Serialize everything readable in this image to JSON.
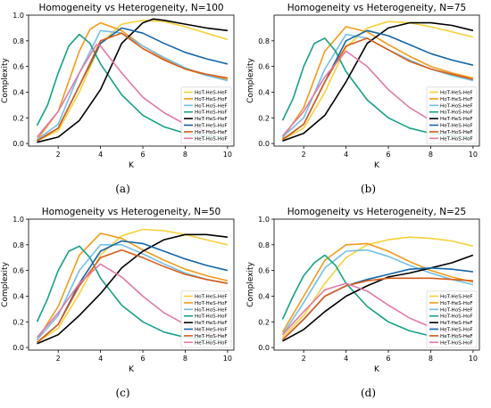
{
  "chart_data": [
    {
      "type": "line",
      "title": "Homogeneity vs Heterogeneity, N=100",
      "xlabel": "K",
      "ylabel": "Complexity",
      "panel_label": "(a)",
      "xlim": [
        0.6,
        10.3
      ],
      "ylim": [
        -0.02,
        1.0
      ],
      "xticks": [
        2,
        4,
        6,
        8,
        10
      ],
      "yticks": [
        0.0,
        0.2,
        0.4,
        0.6,
        0.8,
        1.0
      ],
      "ytick_labels": [
        "0.0",
        "0.2",
        "0.4",
        "0.6",
        "0.8",
        "1.0"
      ],
      "legend_position": "lower-right",
      "series": [
        {
          "name": "HoT-HeS-HeF",
          "color": "#f7d13a",
          "x": [
            1,
            2,
            3,
            4,
            5,
            6,
            7,
            8,
            9,
            10
          ],
          "values": [
            0.02,
            0.1,
            0.4,
            0.78,
            0.93,
            0.96,
            0.95,
            0.91,
            0.86,
            0.81
          ]
        },
        {
          "name": "HoT-HeS-HoF",
          "color": "#f29a1c",
          "x": [
            1,
            2,
            3,
            3.5,
            4,
            5,
            6,
            7,
            8,
            9,
            10
          ],
          "values": [
            0.03,
            0.25,
            0.72,
            0.89,
            0.94,
            0.88,
            0.76,
            0.66,
            0.58,
            0.53,
            0.5
          ]
        },
        {
          "name": "HoT-HoS-HeF",
          "color": "#73bfe6",
          "x": [
            1,
            2,
            3,
            4,
            5,
            6,
            7,
            8,
            9,
            10
          ],
          "values": [
            0.03,
            0.15,
            0.55,
            0.88,
            0.86,
            0.76,
            0.67,
            0.59,
            0.53,
            0.49
          ]
        },
        {
          "name": "HoT-HoS-HoF",
          "color": "#16a085",
          "x": [
            1,
            1.5,
            2,
            2.5,
            3,
            3.5,
            4,
            5,
            6,
            7,
            8,
            9,
            10
          ],
          "values": [
            0.14,
            0.3,
            0.55,
            0.76,
            0.85,
            0.78,
            0.62,
            0.38,
            0.22,
            0.13,
            0.08,
            0.06,
            0.05
          ]
        },
        {
          "name": "HeT-HeS-HeF",
          "color": "#000000",
          "x": [
            1,
            2,
            3,
            4,
            5,
            6,
            6.5,
            7,
            8,
            9,
            10
          ],
          "values": [
            0.01,
            0.05,
            0.18,
            0.42,
            0.78,
            0.94,
            0.97,
            0.96,
            0.93,
            0.9,
            0.88
          ]
        },
        {
          "name": "HeT-HeS-HoF",
          "color": "#1565a8",
          "x": [
            1,
            2,
            3,
            4,
            5,
            6,
            7,
            8,
            9,
            10
          ],
          "values": [
            0.02,
            0.12,
            0.45,
            0.78,
            0.9,
            0.86,
            0.78,
            0.71,
            0.66,
            0.62
          ]
        },
        {
          "name": "HeT-HoS-HeF",
          "color": "#d65d1a",
          "x": [
            1,
            2,
            3,
            4,
            5,
            6,
            7,
            8,
            9,
            10
          ],
          "values": [
            0.02,
            0.12,
            0.45,
            0.8,
            0.86,
            0.74,
            0.65,
            0.58,
            0.54,
            0.51
          ]
        },
        {
          "name": "HeT-HoS-HoF",
          "color": "#e07aa8",
          "x": [
            1,
            2,
            3,
            3.8,
            4,
            5,
            6,
            7,
            8,
            9,
            10
          ],
          "values": [
            0.05,
            0.25,
            0.55,
            0.77,
            0.76,
            0.55,
            0.36,
            0.24,
            0.15,
            0.1,
            0.07
          ]
        }
      ]
    },
    {
      "type": "line",
      "title": "Homogeneity vs Heterogeneity, N=75",
      "xlabel": "K",
      "ylabel": "Complexity",
      "panel_label": "(b)",
      "xlim": [
        0.6,
        10.3
      ],
      "ylim": [
        -0.02,
        1.0
      ],
      "xticks": [
        2,
        4,
        6,
        8,
        10
      ],
      "yticks": [
        0.0,
        0.2,
        0.4,
        0.6,
        0.8
      ],
      "ytick_labels": [
        "0.0",
        "0.2",
        "0.4",
        "0.6",
        "0.8"
      ],
      "legend_position": "lower-right",
      "series": [
        {
          "name": "HoT-HeS-HeF",
          "color": "#f7d13a",
          "x": [
            1,
            2,
            3,
            4,
            5,
            6,
            7,
            8,
            9,
            10
          ],
          "values": [
            0.03,
            0.12,
            0.4,
            0.75,
            0.9,
            0.95,
            0.94,
            0.91,
            0.87,
            0.83
          ]
        },
        {
          "name": "HoT-HeS-HoF",
          "color": "#f29a1c",
          "x": [
            1,
            2,
            3,
            4,
            5,
            6,
            7,
            8,
            9,
            10
          ],
          "values": [
            0.04,
            0.28,
            0.72,
            0.91,
            0.87,
            0.77,
            0.68,
            0.6,
            0.55,
            0.51
          ]
        },
        {
          "name": "HoT-HoS-HeF",
          "color": "#73bfe6",
          "x": [
            1,
            2,
            3,
            4,
            5,
            6,
            7,
            8,
            9,
            10
          ],
          "values": [
            0.05,
            0.2,
            0.58,
            0.85,
            0.82,
            0.73,
            0.65,
            0.58,
            0.53,
            0.49
          ]
        },
        {
          "name": "HoT-HoS-HoF",
          "color": "#16a085",
          "x": [
            1,
            1.5,
            2,
            2.5,
            3,
            3.5,
            4,
            5,
            6,
            7,
            8,
            9,
            10
          ],
          "values": [
            0.18,
            0.35,
            0.6,
            0.78,
            0.82,
            0.72,
            0.56,
            0.34,
            0.2,
            0.12,
            0.08,
            0.06,
            0.05
          ]
        },
        {
          "name": "HeT-HeS-HeF",
          "color": "#000000",
          "x": [
            1,
            2,
            3,
            4,
            5,
            6,
            7,
            8,
            9,
            10
          ],
          "values": [
            0.02,
            0.08,
            0.22,
            0.48,
            0.78,
            0.9,
            0.94,
            0.94,
            0.92,
            0.88
          ]
        },
        {
          "name": "HeT-HeS-HoF",
          "color": "#1565a8",
          "x": [
            1,
            2,
            3,
            4,
            5,
            6,
            7,
            8,
            9,
            10
          ],
          "values": [
            0.03,
            0.15,
            0.48,
            0.8,
            0.88,
            0.84,
            0.77,
            0.7,
            0.65,
            0.61
          ]
        },
        {
          "name": "HeT-HoS-HeF",
          "color": "#d65d1a",
          "x": [
            1,
            2,
            3,
            4,
            5,
            6,
            7,
            8,
            9,
            10
          ],
          "values": [
            0.03,
            0.15,
            0.48,
            0.76,
            0.82,
            0.73,
            0.64,
            0.58,
            0.54,
            0.5
          ]
        },
        {
          "name": "HeT-HoS-HoF",
          "color": "#e07aa8",
          "x": [
            1,
            2,
            3,
            4,
            5,
            6,
            7,
            8,
            9,
            10
          ],
          "values": [
            0.06,
            0.25,
            0.52,
            0.72,
            0.6,
            0.42,
            0.28,
            0.18,
            0.12,
            0.08
          ]
        }
      ]
    },
    {
      "type": "line",
      "title": "Homogeneity vs Heterogeneity, N=50",
      "xlabel": "K",
      "ylabel": "Complexity",
      "panel_label": "(c)",
      "xlim": [
        0.6,
        10.3
      ],
      "ylim": [
        -0.02,
        1.0
      ],
      "xticks": [
        2,
        4,
        6,
        8,
        10
      ],
      "yticks": [
        0.0,
        0.2,
        0.4,
        0.6,
        0.8,
        1.0
      ],
      "ytick_labels": [
        "0.0",
        "0.2",
        "0.4",
        "0.6",
        "0.8",
        "1.0"
      ],
      "legend_position": "lower-right",
      "series": [
        {
          "name": "HoT-HeS-HeF",
          "color": "#f7d13a",
          "x": [
            1,
            2,
            3,
            4,
            5,
            6,
            7,
            8,
            9,
            10
          ],
          "values": [
            0.04,
            0.15,
            0.42,
            0.72,
            0.87,
            0.92,
            0.91,
            0.88,
            0.84,
            0.8
          ]
        },
        {
          "name": "HoT-HeS-HoF",
          "color": "#f29a1c",
          "x": [
            1,
            2,
            3,
            4,
            5,
            6,
            7,
            8,
            9,
            10
          ],
          "values": [
            0.06,
            0.32,
            0.72,
            0.89,
            0.85,
            0.76,
            0.68,
            0.61,
            0.56,
            0.52
          ]
        },
        {
          "name": "HoT-HoS-HeF",
          "color": "#73bfe6",
          "x": [
            1,
            2,
            3,
            4,
            5,
            6,
            7,
            8,
            9,
            10
          ],
          "values": [
            0.06,
            0.25,
            0.6,
            0.8,
            0.8,
            0.73,
            0.65,
            0.58,
            0.53,
            0.5
          ]
        },
        {
          "name": "HoT-HoS-HoF",
          "color": "#16a085",
          "x": [
            1,
            1.5,
            2,
            2.5,
            3,
            3.5,
            4,
            5,
            6,
            7,
            8,
            9,
            10
          ],
          "values": [
            0.2,
            0.38,
            0.6,
            0.75,
            0.79,
            0.7,
            0.54,
            0.33,
            0.2,
            0.12,
            0.08,
            0.06,
            0.05
          ]
        },
        {
          "name": "HeT-HeS-HeF",
          "color": "#000000",
          "x": [
            1,
            2,
            3,
            4,
            5,
            6,
            7,
            8,
            9,
            10
          ],
          "values": [
            0.03,
            0.1,
            0.25,
            0.42,
            0.62,
            0.75,
            0.84,
            0.88,
            0.88,
            0.86
          ]
        },
        {
          "name": "HeT-HeS-HoF",
          "color": "#1565a8",
          "x": [
            1,
            2,
            3,
            4,
            5,
            6,
            7,
            8,
            9,
            10
          ],
          "values": [
            0.04,
            0.18,
            0.5,
            0.75,
            0.83,
            0.81,
            0.75,
            0.69,
            0.64,
            0.6
          ]
        },
        {
          "name": "HeT-HoS-HeF",
          "color": "#d65d1a",
          "x": [
            1,
            2,
            3,
            4,
            5,
            6,
            7,
            8,
            9,
            10
          ],
          "values": [
            0.04,
            0.18,
            0.48,
            0.7,
            0.76,
            0.7,
            0.63,
            0.57,
            0.53,
            0.5
          ]
        },
        {
          "name": "HeT-HoS-HoF",
          "color": "#e07aa8",
          "x": [
            1,
            2,
            3,
            4,
            5,
            6,
            7,
            8,
            9,
            10
          ],
          "values": [
            0.08,
            0.27,
            0.5,
            0.65,
            0.55,
            0.4,
            0.27,
            0.18,
            0.12,
            0.08
          ]
        }
      ]
    },
    {
      "type": "line",
      "title": "Homogeneity vs Heterogeneity, N=25",
      "xlabel": "K",
      "ylabel": "Complexity",
      "panel_label": "(d)",
      "xlim": [
        0.6,
        10.3
      ],
      "ylim": [
        -0.02,
        1.0
      ],
      "xticks": [
        2,
        4,
        6,
        8,
        10
      ],
      "yticks": [
        0.0,
        0.2,
        0.4,
        0.6,
        0.8,
        1.0
      ],
      "ytick_labels": [
        "0.0",
        "0.2",
        "0.4",
        "0.6",
        "0.8",
        "1.0"
      ],
      "legend_position": "lower-right",
      "series": [
        {
          "name": "HoT-HeS-HeF",
          "color": "#f7d13a",
          "x": [
            1,
            2,
            3,
            4,
            5,
            6,
            7,
            8,
            9,
            10
          ],
          "values": [
            0.08,
            0.25,
            0.5,
            0.7,
            0.8,
            0.84,
            0.86,
            0.85,
            0.83,
            0.79
          ]
        },
        {
          "name": "HoT-HeS-HoF",
          "color": "#f29a1c",
          "x": [
            1,
            2,
            3,
            4,
            5,
            6,
            7,
            8,
            9,
            10
          ],
          "values": [
            0.12,
            0.4,
            0.68,
            0.8,
            0.81,
            0.75,
            0.67,
            0.6,
            0.55,
            0.51
          ]
        },
        {
          "name": "HoT-HoS-HeF",
          "color": "#73bfe6",
          "x": [
            1,
            2,
            3,
            4,
            5,
            6,
            7,
            8,
            9,
            10
          ],
          "values": [
            0.1,
            0.35,
            0.62,
            0.75,
            0.76,
            0.71,
            0.64,
            0.58,
            0.53,
            0.49
          ]
        },
        {
          "name": "HoT-HoS-HoF",
          "color": "#16a085",
          "x": [
            1,
            1.5,
            2,
            2.5,
            3,
            3.5,
            4,
            5,
            6,
            7,
            8,
            9,
            10
          ],
          "values": [
            0.22,
            0.4,
            0.56,
            0.66,
            0.72,
            0.64,
            0.5,
            0.32,
            0.2,
            0.13,
            0.09,
            0.07,
            0.06
          ]
        },
        {
          "name": "HeT-HeS-HeF",
          "color": "#000000",
          "x": [
            1,
            2,
            3,
            4,
            5,
            6,
            7,
            8,
            9,
            10
          ],
          "values": [
            0.05,
            0.14,
            0.28,
            0.4,
            0.48,
            0.55,
            0.58,
            0.62,
            0.66,
            0.72
          ]
        },
        {
          "name": "HeT-HeS-HoF",
          "color": "#1565a8",
          "x": [
            1,
            2,
            3,
            4,
            5,
            6,
            7,
            8,
            9,
            10
          ],
          "values": [
            0.06,
            0.22,
            0.4,
            0.48,
            0.53,
            0.57,
            0.61,
            0.62,
            0.61,
            0.59
          ]
        },
        {
          "name": "HeT-HoS-HeF",
          "color": "#d65d1a",
          "x": [
            1,
            2,
            3,
            4,
            5,
            6,
            7,
            8,
            9,
            10
          ],
          "values": [
            0.06,
            0.22,
            0.4,
            0.48,
            0.52,
            0.54,
            0.54,
            0.54,
            0.53,
            0.52
          ]
        },
        {
          "name": "HeT-HoS-HoF",
          "color": "#e07aa8",
          "x": [
            1,
            2,
            3,
            4,
            5,
            6,
            7,
            8,
            9,
            10
          ],
          "values": [
            0.1,
            0.28,
            0.45,
            0.5,
            0.44,
            0.33,
            0.23,
            0.16,
            0.11,
            0.08
          ]
        }
      ]
    }
  ]
}
